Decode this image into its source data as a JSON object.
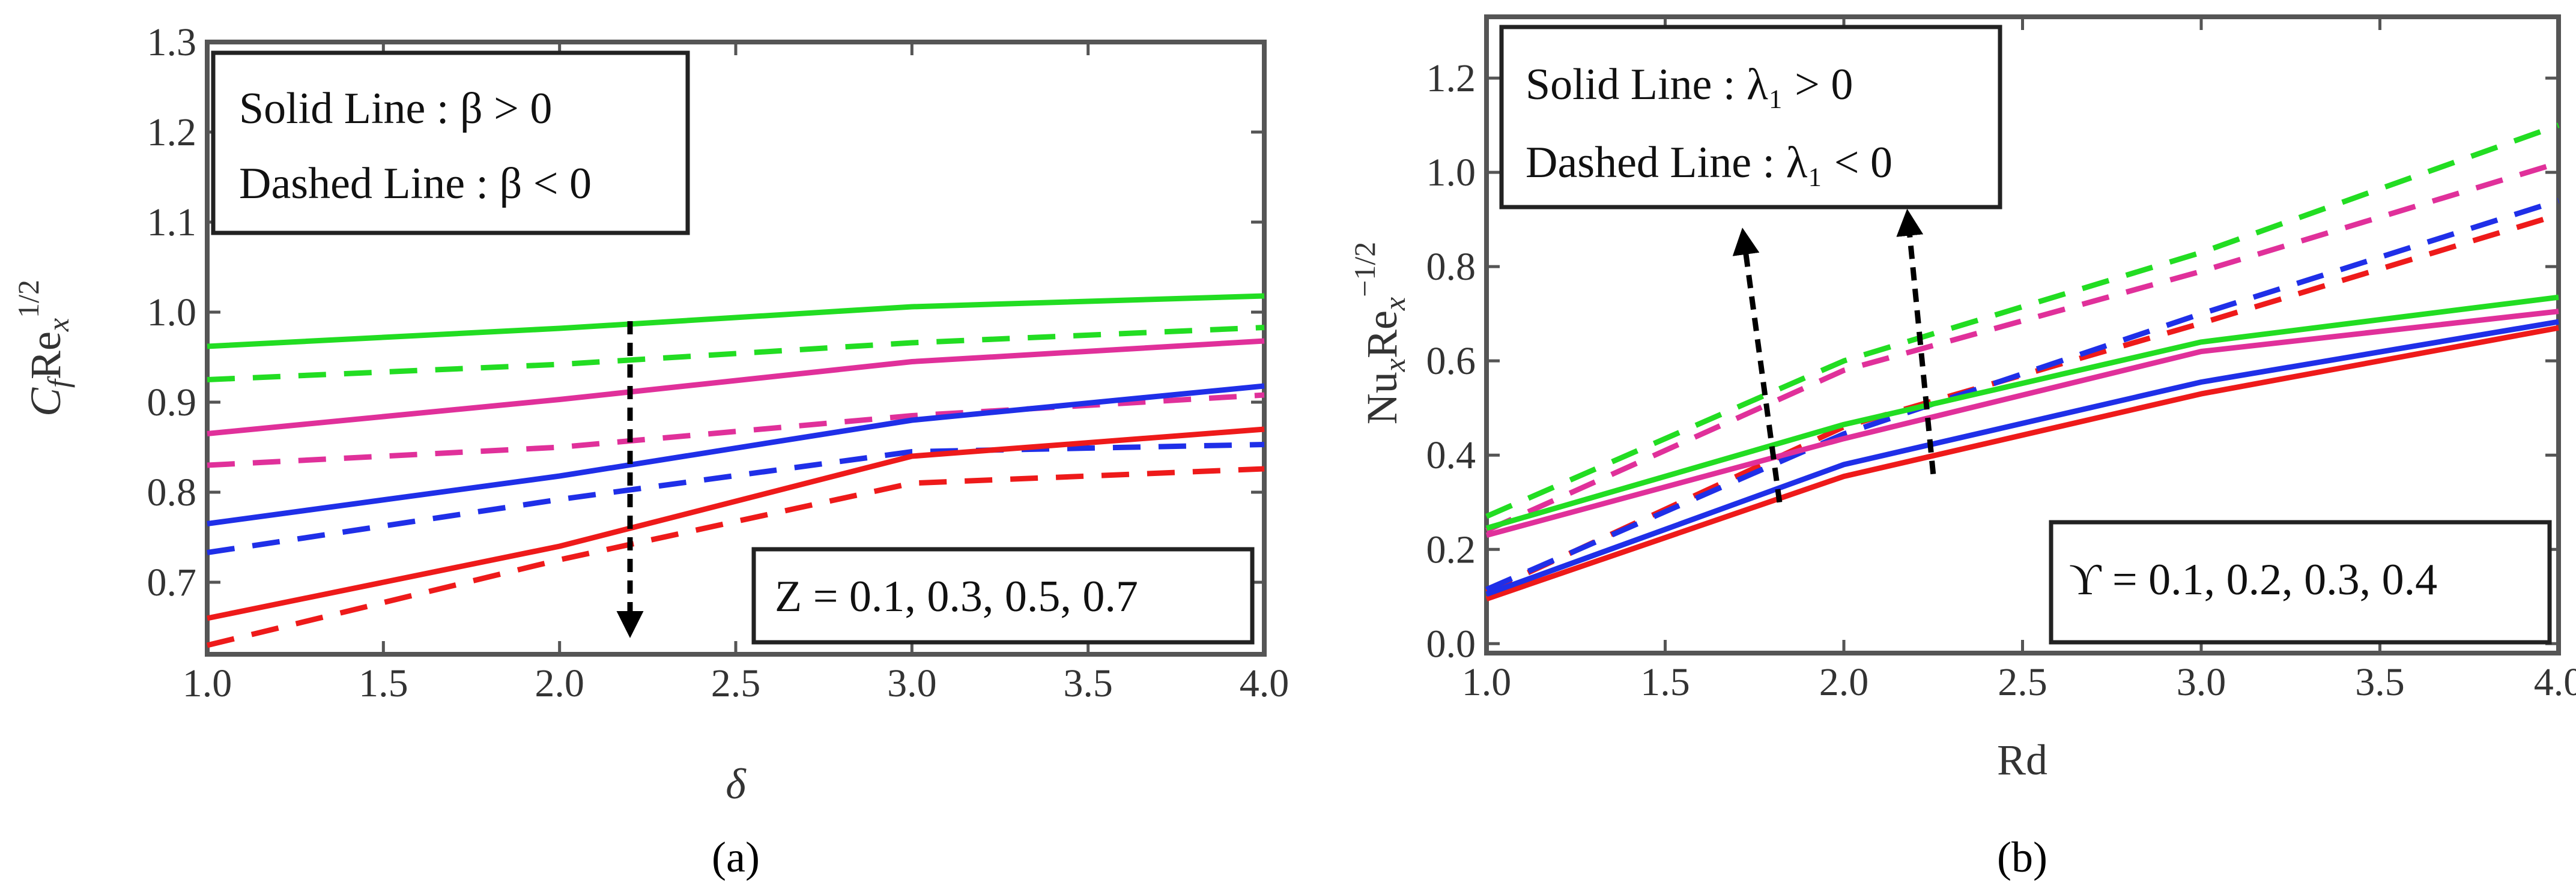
{
  "chart_data": [
    {
      "type": "line",
      "panel_caption": "(a)",
      "title": "",
      "xlabel": "δ",
      "ylabel": "C_f Re_x^{1/2}",
      "ylabel_main": "C",
      "ylabel_sub": "f",
      "ylabel_re": "Re",
      "ylabel_re_sub": "x",
      "ylabel_sup": "1/2",
      "xlim": [
        1.0,
        4.0
      ],
      "ylim": [
        0.62,
        1.3
      ],
      "x_ticks": [
        1.0,
        1.5,
        2.0,
        2.5,
        3.0,
        3.5,
        4.0
      ],
      "x_tick_labels": [
        "1.0",
        "1.5",
        "2.0",
        "2.5",
        "3.0",
        "3.5",
        "4.0"
      ],
      "y_ticks": [
        0.7,
        0.8,
        0.9,
        1.0,
        1.1,
        1.2,
        1.3
      ],
      "y_tick_labels": [
        "0.7",
        "0.8",
        "0.9",
        "1.0",
        "1.1",
        "1.2",
        "1.3"
      ],
      "legend": {
        "line1": "Solid Line : β > 0",
        "line2": "Dashed Line : β < 0",
        "placement": "top-left"
      },
      "parameter_box": {
        "text": "Z = 0.1, 0.3, 0.5, 0.7",
        "placement": "bottom-right"
      },
      "arrows": [
        {
          "x": 2.2,
          "y_from": 0.99,
          "y_to": 0.65,
          "direction": "down"
        }
      ],
      "x": [
        1.0,
        2.0,
        3.0,
        4.0
      ],
      "series": [
        {
          "name": "Z = 0.1, β > 0",
          "color": "#22dd22",
          "style": "solid",
          "values": [
            0.962,
            0.982,
            1.006,
            1.018
          ]
        },
        {
          "name": "Z = 0.1, β < 0",
          "color": "#22dd22",
          "style": "dashed",
          "values": [
            0.925,
            0.942,
            0.966,
            0.983
          ]
        },
        {
          "name": "Z = 0.3, β > 0",
          "color": "#e0309a",
          "style": "solid",
          "values": [
            0.865,
            0.903,
            0.945,
            0.968
          ]
        },
        {
          "name": "Z = 0.3, β < 0",
          "color": "#e0309a",
          "style": "dashed",
          "values": [
            0.83,
            0.85,
            0.885,
            0.908
          ]
        },
        {
          "name": "Z = 0.5, β > 0",
          "color": "#1f2fe8",
          "style": "solid",
          "values": [
            0.765,
            0.818,
            0.88,
            0.918
          ]
        },
        {
          "name": "Z = 0.5, β < 0",
          "color": "#1f2fe8",
          "style": "dashed",
          "values": [
            0.733,
            0.792,
            0.845,
            0.853
          ]
        },
        {
          "name": "Z = 0.7, β > 0",
          "color": "#ee1a1a",
          "style": "solid",
          "values": [
            0.66,
            0.74,
            0.84,
            0.87
          ]
        },
        {
          "name": "Z = 0.7, β < 0",
          "color": "#ee1a1a",
          "style": "dashed",
          "values": [
            0.63,
            0.725,
            0.81,
            0.826
          ]
        }
      ]
    },
    {
      "type": "line",
      "panel_caption": "(b)",
      "title": "",
      "xlabel": "Rd",
      "ylabel": "Nu_x Re_x^{-1/2}",
      "ylabel_main": "Nu",
      "ylabel_sub": "x",
      "ylabel_re": "Re",
      "ylabel_re_sub": "x",
      "ylabel_sup": "−1/2",
      "xlim": [
        1.0,
        4.0
      ],
      "ylim": [
        -0.02,
        1.33
      ],
      "x_ticks": [
        1.0,
        1.5,
        2.0,
        2.5,
        3.0,
        3.5,
        4.0
      ],
      "x_tick_labels": [
        "1.0",
        "1.5",
        "2.0",
        "2.5",
        "3.0",
        "3.5",
        "4.0"
      ],
      "y_ticks": [
        0.0,
        0.2,
        0.4,
        0.6,
        0.8,
        1.0,
        1.2
      ],
      "y_tick_labels": [
        "0.0",
        "0.2",
        "0.4",
        "0.6",
        "0.8",
        "1.0",
        "1.2"
      ],
      "legend": {
        "line1": "Solid Line : λ₁ > 0",
        "line2": "Dashed Line : λ₁  < 0",
        "placement": "top-left"
      },
      "parameter_box": {
        "text": "ϒ = 0.1, 0.2, 0.3, 0.4",
        "placement": "bottom-right"
      },
      "arrows": [
        {
          "x_from": 1.82,
          "y_from": 0.3,
          "x_to": 1.72,
          "y_to": 0.86,
          "direction": "up"
        },
        {
          "x_from": 2.25,
          "y_from": 0.36,
          "x_to": 2.18,
          "y_to": 0.9,
          "direction": "up"
        }
      ],
      "x": [
        1.0,
        2.0,
        3.0,
        4.0
      ],
      "series": [
        {
          "name": "ϒ = 0.1, λ₁ > 0",
          "color": "#ee1a1a",
          "style": "solid",
          "values": [
            0.095,
            0.355,
            0.53,
            0.67
          ]
        },
        {
          "name": "ϒ = 0.1, λ₁ < 0",
          "color": "#ee1a1a",
          "style": "dashed",
          "values": [
            0.11,
            0.46,
            0.68,
            0.91
          ]
        },
        {
          "name": "ϒ = 0.2, λ₁ > 0",
          "color": "#1f2fe8",
          "style": "solid",
          "values": [
            0.105,
            0.38,
            0.555,
            0.683
          ]
        },
        {
          "name": "ϒ = 0.2, λ₁ < 0",
          "color": "#1f2fe8",
          "style": "dashed",
          "values": [
            0.115,
            0.445,
            0.7,
            0.94
          ]
        },
        {
          "name": "ϒ = 0.3, λ₁ > 0",
          "color": "#e0309a",
          "style": "solid",
          "values": [
            0.23,
            0.435,
            0.62,
            0.705
          ]
        },
        {
          "name": "ϒ = 0.3, λ₁ < 0",
          "color": "#e0309a",
          "style": "dashed",
          "values": [
            0.24,
            0.58,
            0.79,
            1.02
          ]
        },
        {
          "name": "ϒ = 0.4, λ₁ > 0",
          "color": "#22dd22",
          "style": "solid",
          "values": [
            0.245,
            0.465,
            0.64,
            0.735
          ]
        },
        {
          "name": "ϒ = 0.4, λ₁ < 0",
          "color": "#22dd22",
          "style": "dashed",
          "values": [
            0.27,
            0.6,
            0.83,
            1.1
          ]
        }
      ]
    }
  ]
}
